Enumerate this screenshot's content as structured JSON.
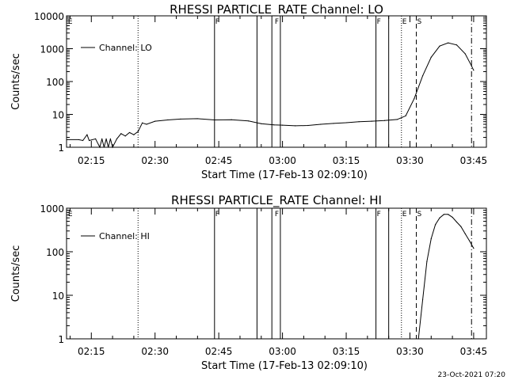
{
  "footer_date": "23-Oct-2021 07:20",
  "flag_labels": [
    "E",
    "F",
    "F",
    "F",
    "E",
    "S"
  ],
  "chart_data": [
    {
      "type": "line",
      "title": "RHESSI PARTICLE_RATE Channel: LO",
      "xlabel": "Start Time (17-Feb-13 02:09:10)",
      "ylabel": "Counts/sec",
      "yscale": "log",
      "ylim": [
        1,
        10000
      ],
      "xlim": [
        "02:09:10",
        "03:48:00"
      ],
      "ytick_labels": [
        "1",
        "10",
        "100",
        "1000",
        "10000"
      ],
      "xtick_labels": [
        "02:15",
        "02:30",
        "02:45",
        "03:00",
        "03:15",
        "03:30",
        "03:45"
      ],
      "legend": "top-left",
      "series": [
        {
          "name": "Channel: LO",
          "points": [
            [
              "02:09:10",
              1.7
            ],
            [
              "02:12:00",
              1.7
            ],
            [
              "02:13:00",
              1.6
            ],
            [
              "02:14:00",
              2.4
            ],
            [
              "02:14:30",
              1.6
            ],
            [
              "02:16:00",
              1.8
            ],
            [
              "02:17:00",
              1.0
            ],
            [
              "02:17:30",
              1.8
            ],
            [
              "02:18:00",
              1.0
            ],
            [
              "02:18:30",
              1.8
            ],
            [
              "02:19:00",
              1.0
            ],
            [
              "02:19:30",
              1.8
            ],
            [
              "02:20:00",
              1.0
            ],
            [
              "02:21:00",
              1.8
            ],
            [
              "02:22:00",
              2.6
            ],
            [
              "02:23:00",
              2.2
            ],
            [
              "02:24:00",
              2.8
            ],
            [
              "02:25:00",
              2.4
            ],
            [
              "02:26:00",
              3.0
            ],
            [
              "02:27:00",
              5.5
            ],
            [
              "02:28:00",
              5.0
            ],
            [
              "02:30:00",
              6.2
            ],
            [
              "02:33:00",
              6.8
            ],
            [
              "02:36:00",
              7.2
            ],
            [
              "02:40:00",
              7.4
            ],
            [
              "02:44:00",
              6.8
            ],
            [
              "02:48:00",
              6.9
            ],
            [
              "02:52:00",
              6.3
            ],
            [
              "02:55:00",
              5.2
            ],
            [
              "02:58:00",
              4.8
            ],
            [
              "03:00:00",
              4.7
            ],
            [
              "03:03:00",
              4.5
            ],
            [
              "03:06:00",
              4.6
            ],
            [
              "03:09:00",
              5.0
            ],
            [
              "03:12:00",
              5.3
            ],
            [
              "03:15:00",
              5.6
            ],
            [
              "03:18:00",
              6.0
            ],
            [
              "03:21:00",
              6.2
            ],
            [
              "03:24:00",
              6.5
            ],
            [
              "03:27:00",
              7.0
            ],
            [
              "03:29:00",
              9.0
            ],
            [
              "03:31:00",
              30
            ],
            [
              "03:33:00",
              150
            ],
            [
              "03:35:00",
              550
            ],
            [
              "03:37:00",
              1200
            ],
            [
              "03:39:00",
              1500
            ],
            [
              "03:41:00",
              1300
            ],
            [
              "03:43:00",
              700
            ],
            [
              "03:44:30",
              300
            ],
            [
              "03:45:00",
              220
            ]
          ]
        }
      ]
    },
    {
      "type": "line",
      "title": "RHESSI PARTICLE_RATE Channel: HI",
      "xlabel": "Start Time (17-Feb-13 02:09:10)",
      "ylabel": "Counts/sec",
      "yscale": "log",
      "ylim": [
        1,
        1000
      ],
      "xlim": [
        "02:09:10",
        "03:48:00"
      ],
      "ytick_labels": [
        "1",
        "10",
        "100",
        "1000"
      ],
      "xtick_labels": [
        "02:15",
        "02:30",
        "02:45",
        "03:00",
        "03:15",
        "03:30",
        "03:45"
      ],
      "legend": "top-left",
      "series": [
        {
          "name": "Channel: HI",
          "points": [
            [
              "03:32:00",
              1.0
            ],
            [
              "03:33:00",
              8
            ],
            [
              "03:34:00",
              60
            ],
            [
              "03:35:00",
              200
            ],
            [
              "03:36:00",
              420
            ],
            [
              "03:37:00",
              600
            ],
            [
              "03:38:00",
              720
            ],
            [
              "03:39:00",
              720
            ],
            [
              "03:40:00",
              620
            ],
            [
              "03:41:00",
              480
            ],
            [
              "03:42:00",
              380
            ],
            [
              "03:43:00",
              260
            ],
            [
              "03:44:00",
              180
            ],
            [
              "03:45:00",
              120
            ]
          ]
        }
      ]
    }
  ]
}
